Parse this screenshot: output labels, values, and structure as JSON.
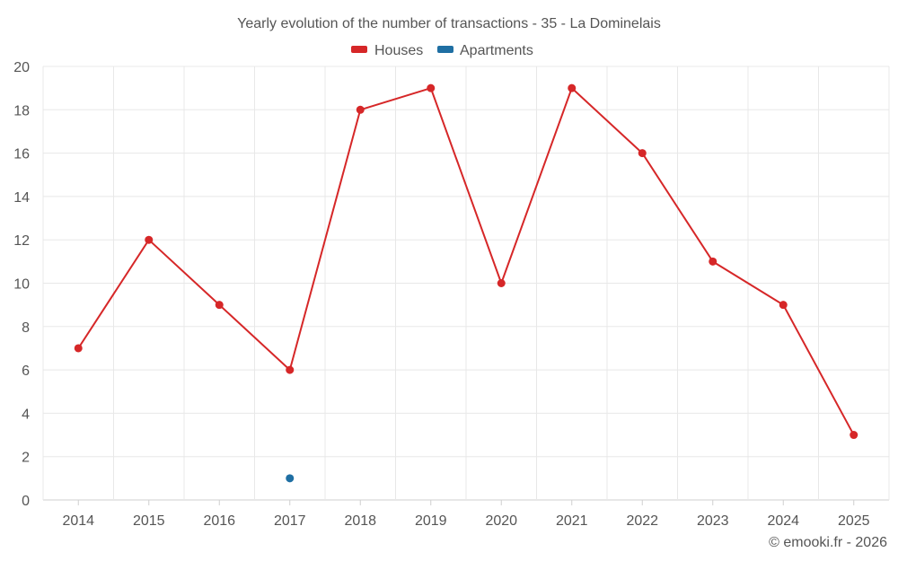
{
  "chart_data": {
    "type": "line",
    "title": "Yearly evolution of the number of transactions - 35 - La Dominelais",
    "categories": [
      "2014",
      "2015",
      "2016",
      "2017",
      "2018",
      "2019",
      "2020",
      "2021",
      "2022",
      "2023",
      "2024",
      "2025"
    ],
    "series": [
      {
        "name": "Houses",
        "color": "#d62728",
        "values": [
          7,
          12,
          9,
          6,
          18,
          19,
          10,
          19,
          16,
          11,
          9,
          3
        ]
      },
      {
        "name": "Apartments",
        "color": "#1f6fa3",
        "values": [
          null,
          null,
          null,
          1,
          null,
          null,
          null,
          null,
          null,
          null,
          null,
          null
        ]
      }
    ],
    "ylim": [
      0,
      20
    ],
    "yticks": [
      0,
      2,
      4,
      6,
      8,
      10,
      12,
      14,
      16,
      18,
      20
    ],
    "xlabel": "",
    "ylabel": "",
    "grid": true,
    "legend": "top-center"
  },
  "credit": "© emooki.fr - 2026"
}
